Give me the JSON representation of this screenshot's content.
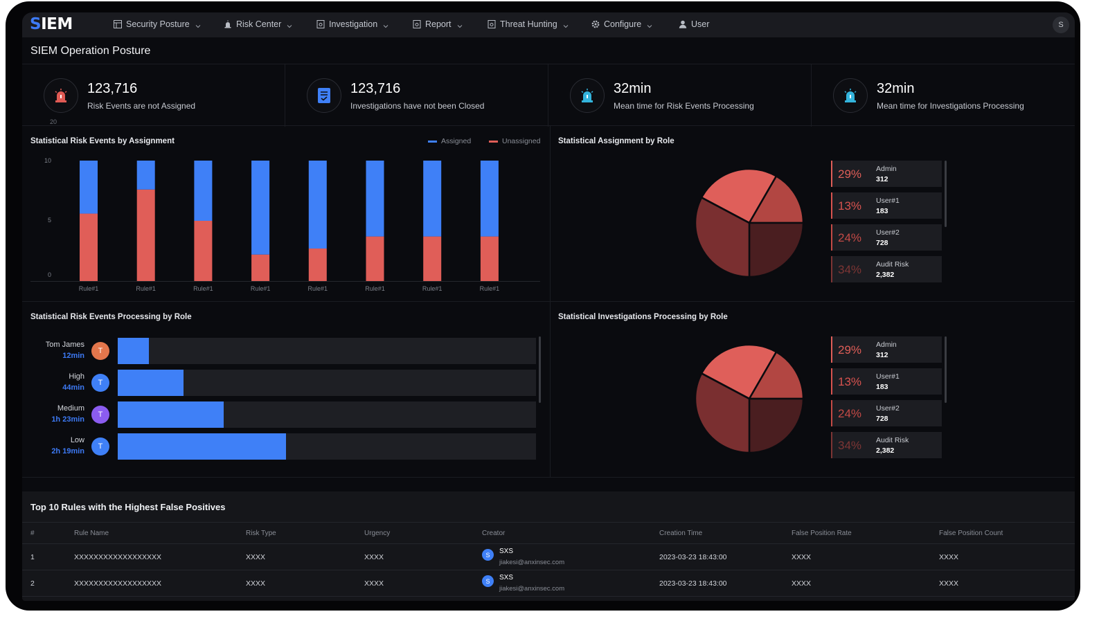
{
  "app": {
    "logo_s": "S",
    "logo_rest": "IEM",
    "avatar": "S"
  },
  "nav": [
    {
      "label": "Security Posture",
      "icon": "dashboard-icon"
    },
    {
      "label": "Risk Center",
      "icon": "alarm-icon"
    },
    {
      "label": "Investigation",
      "icon": "document-search-icon"
    },
    {
      "label": "Report",
      "icon": "report-icon"
    },
    {
      "label": "Threat Hunting",
      "icon": "hunt-icon"
    },
    {
      "label": "Configure",
      "icon": "gear-icon"
    },
    {
      "label": "User",
      "icon": "user-icon"
    }
  ],
  "page": {
    "title": "SIEM Operation Posture"
  },
  "stats": [
    {
      "value": "123,716",
      "label": "Risk Events are not Assigned",
      "icon": "alarm-icon",
      "color": "#e05a54"
    },
    {
      "value": "123,716",
      "label": "Investigations have not been Closed",
      "icon": "document-icon",
      "color": "#3f80f7"
    },
    {
      "value": "32min",
      "label": "Mean time for Risk Events Processing",
      "icon": "alarm-icon",
      "color": "#33b4dc"
    },
    {
      "value": "32min",
      "label": "Mean time for Investigations Processing",
      "icon": "alarm-icon",
      "color": "#33b4dc"
    }
  ],
  "stats_tiny": "20",
  "panels": {
    "assignment": "Statistical Risk Events by Assignment",
    "by_role": "Statistical Assignment by Role",
    "processing": "Statistical Risk Events Processing by Role",
    "investigations": "Statistical Investigations Processing by Role"
  },
  "chart_data": [
    {
      "type": "bar",
      "stacked": true,
      "categories": [
        "Rule#1",
        "Rule#1",
        "Rule#1",
        "Rule#1",
        "Rule#1",
        "Rule#1",
        "Rule#1",
        "Rule#1"
      ],
      "series": [
        {
          "name": "Unassigned",
          "color": "#e05e58",
          "values": [
            5.6,
            7.6,
            5.0,
            2.2,
            2.7,
            3.7,
            3.7,
            3.7
          ]
        },
        {
          "name": "Assigned",
          "color": "#3f80f7",
          "values": [
            4.4,
            2.4,
            5.0,
            7.8,
            7.3,
            6.3,
            6.3,
            6.3
          ]
        }
      ],
      "yticks": [
        "10",
        "5",
        "0"
      ],
      "ylim": [
        0,
        10
      ],
      "legend": "top-right",
      "grid": false
    },
    {
      "type": "pie",
      "slices": [
        {
          "name": "Admin",
          "percent": "29%",
          "count": "312",
          "color": "#e05e58"
        },
        {
          "name": "User#1",
          "percent": "13%",
          "count": "183",
          "color": "#c74b47"
        },
        {
          "name": "User#2",
          "percent": "24%",
          "count": "728",
          "color": "#9e3a38"
        },
        {
          "name": "Audit Risk",
          "percent": "34%",
          "count": "2,382",
          "color": "#6b2a2a"
        }
      ]
    },
    {
      "type": "bar",
      "orientation": "horizontal",
      "rows": [
        {
          "name": "Tom James",
          "time": "12min",
          "avatar": "T",
          "avatar_color": "#e3764c",
          "fraction": 0.075
        },
        {
          "name": "High",
          "time": "44min",
          "avatar": "T",
          "avatar_color": "#3f80f7",
          "fraction": 0.158
        },
        {
          "name": "Medium",
          "time": "1h 23min",
          "avatar": "T",
          "avatar_color": "#8b5cf0",
          "fraction": 0.253
        },
        {
          "name": "Low",
          "time": "2h 19min",
          "avatar": "T",
          "avatar_color": "#3f80f7",
          "fraction": 0.403
        }
      ]
    },
    {
      "type": "pie",
      "slices": [
        {
          "name": "Admin",
          "percent": "29%",
          "count": "312",
          "color": "#e05e58"
        },
        {
          "name": "User#1",
          "percent": "13%",
          "count": "183",
          "color": "#c74b47"
        },
        {
          "name": "User#2",
          "percent": "24%",
          "count": "728",
          "color": "#9e3a38"
        },
        {
          "name": "Audit Risk",
          "percent": "34%",
          "count": "2,382",
          "color": "#6b2a2a"
        }
      ]
    }
  ],
  "table": {
    "title": "Top 10 Rules with the Highest False Positives",
    "columns": [
      "#",
      "Rule Name",
      "Risk Type",
      "Urgency",
      "Creator",
      "Creation Time",
      "False Position Rate",
      "False Position Count"
    ],
    "rows": [
      {
        "idx": "1",
        "rule": "XXXXXXXXXXXXXXXXXX",
        "risk_type": "XXXX",
        "urgency": "XXXX",
        "creator_avatar": "S",
        "creator_name": "SXS",
        "creator_email": "jiakesi@anxinsec.com",
        "time": "2023-03-23 18:43:00",
        "rate": "XXXX",
        "count": "XXXX"
      },
      {
        "idx": "2",
        "rule": "XXXXXXXXXXXXXXXXXX",
        "risk_type": "XXXX",
        "urgency": "XXXX",
        "creator_avatar": "S",
        "creator_name": "SXS",
        "creator_email": "jiakesi@anxinsec.com",
        "time": "2023-03-23 18:43:00",
        "rate": "XXXX",
        "count": "XXXX"
      }
    ]
  }
}
